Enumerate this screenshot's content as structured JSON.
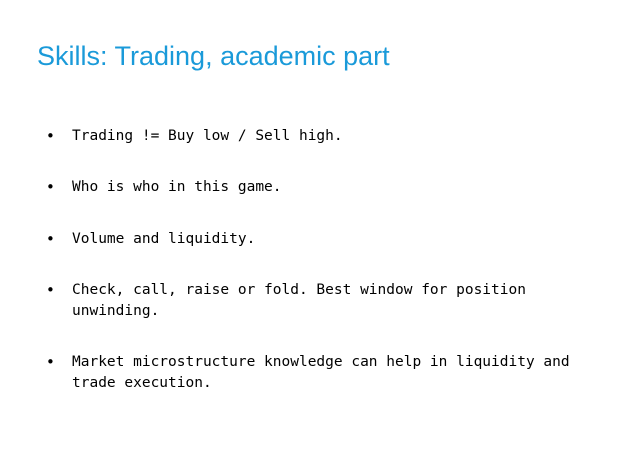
{
  "slide": {
    "title": "Skills: Trading, academic part",
    "bullet_glyph": "•",
    "bullets": [
      "Trading != Buy low / Sell high.",
      "Who is who in this game.",
      "Volume and liquidity.",
      "Check, call, raise or fold. Best window for position unwinding.",
      "Market microstructure knowledge can help in liquidity and trade execution."
    ]
  },
  "colors": {
    "title": "#1a9ad9",
    "text": "#000000",
    "background": "#ffffff"
  }
}
